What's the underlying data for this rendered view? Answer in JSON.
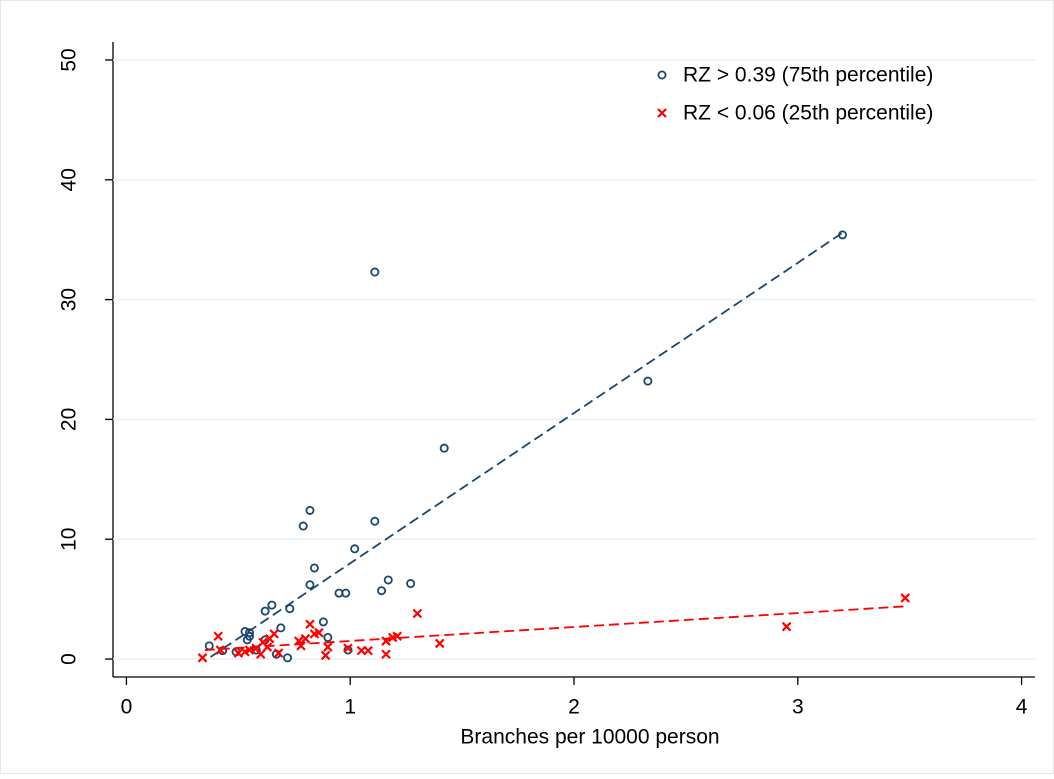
{
  "chart_data": {
    "type": "scatter",
    "xlabel": "Branches per 10000 person",
    "xlim": [
      -0.06,
      4.06
    ],
    "ylim": [
      -1.5,
      51.5
    ],
    "xticks": [
      0,
      1,
      2,
      3,
      4
    ],
    "yticks": [
      0,
      10,
      20,
      30,
      40,
      50
    ],
    "grid": true,
    "legend": "top-right",
    "series": [
      {
        "name": "RZ > 0.39 (75th percentile)",
        "color": "#1a476f",
        "marker": "circle",
        "x": [
          0.37,
          0.43,
          0.53,
          0.55,
          0.55,
          0.54,
          0.49,
          0.58,
          0.62,
          0.62,
          0.65,
          0.67,
          0.69,
          0.72,
          0.73,
          0.79,
          0.82,
          0.82,
          0.84,
          0.88,
          0.9,
          0.95,
          0.98,
          0.99,
          1.02,
          1.11,
          1.11,
          1.14,
          1.17,
          1.27,
          1.42,
          2.33,
          3.2
        ],
        "values": [
          1.1,
          0.7,
          2.3,
          1.9,
          2.2,
          1.6,
          0.6,
          0.75,
          1.6,
          4.0,
          4.5,
          0.4,
          2.6,
          0.1,
          4.2,
          11.1,
          12.4,
          6.2,
          7.6,
          3.1,
          1.8,
          5.5,
          5.5,
          0.75,
          9.2,
          32.3,
          11.5,
          5.7,
          6.6,
          6.3,
          17.6,
          23.2,
          35.4
        ],
        "fit": {
          "x": [
            0.376,
            3.21
          ],
          "values": [
            0.17,
            35.7
          ]
        }
      },
      {
        "name": "RZ < 0.06 (25th percentile)",
        "color": "#ff0000",
        "marker": "x",
        "x": [
          0.34,
          0.41,
          0.42,
          0.5,
          0.53,
          0.55,
          0.58,
          0.6,
          0.61,
          0.63,
          0.64,
          0.66,
          0.68,
          0.77,
          0.78,
          0.8,
          0.82,
          0.84,
          0.86,
          0.89,
          0.9,
          0.99,
          1.05,
          1.08,
          1.16,
          1.16,
          1.19,
          1.21,
          1.3,
          1.4,
          2.95,
          3.48
        ],
        "values": [
          0.1,
          1.9,
          0.75,
          0.5,
          0.6,
          0.75,
          0.9,
          0.4,
          1.4,
          1.0,
          1.7,
          2.1,
          0.5,
          1.5,
          1.1,
          1.7,
          2.9,
          2.1,
          2.2,
          0.3,
          1.0,
          0.9,
          0.7,
          0.7,
          1.5,
          0.4,
          1.8,
          1.9,
          3.8,
          1.3,
          2.7,
          5.1
        ],
        "fit": {
          "x": [
            0.35,
            3.48
          ],
          "values": [
            0.75,
            4.4
          ]
        }
      }
    ]
  }
}
